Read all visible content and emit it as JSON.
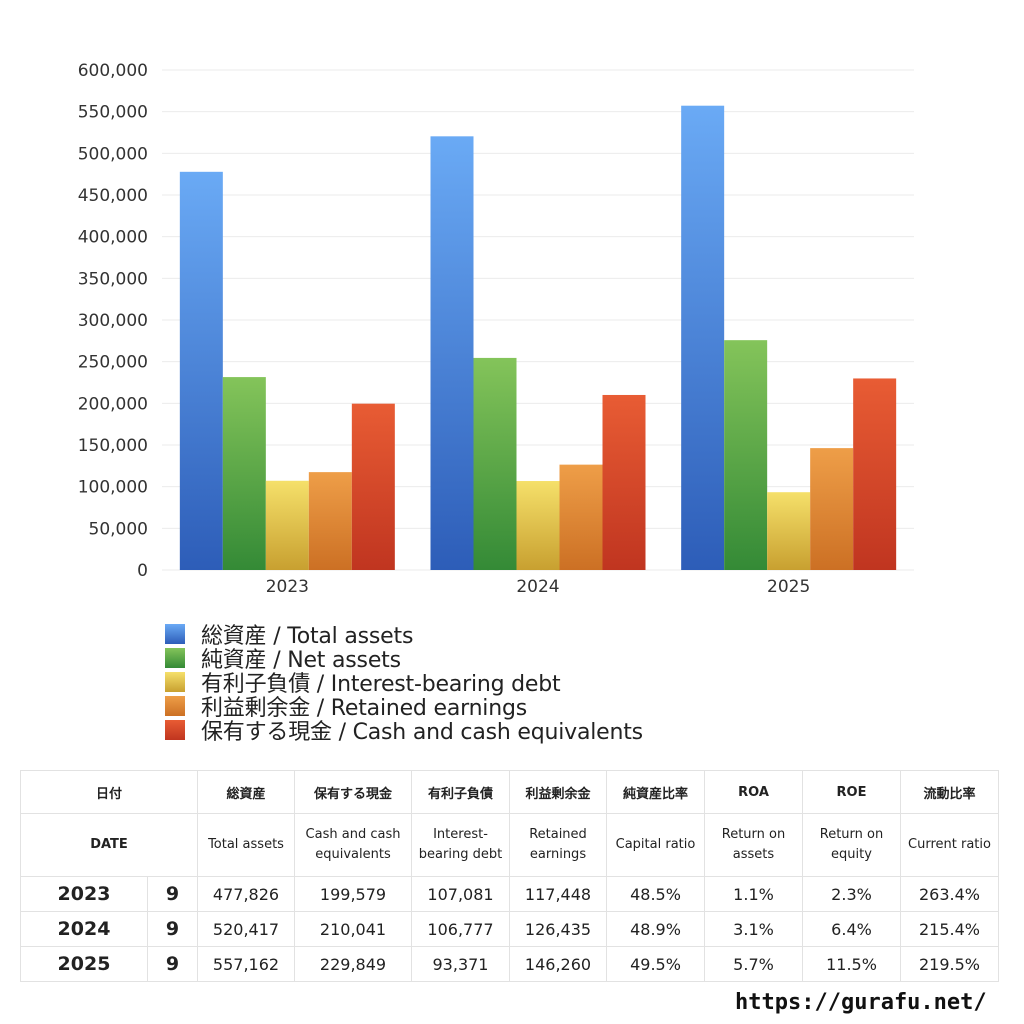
{
  "chart_data": {
    "type": "bar",
    "categories": [
      "2023",
      "2024",
      "2025"
    ],
    "series": [
      {
        "name": "総資産 / Total assets",
        "color": "#4a86e0",
        "color_top": "#6aaaf5",
        "color_bottom": "#2d5db8",
        "values": [
          477826,
          520417,
          557162
        ]
      },
      {
        "name": "純資産 / Net assets",
        "color": "#58a844",
        "color_top": "#84c45a",
        "color_bottom": "#348a36",
        "values": [
          231500,
          254500,
          275800
        ]
      },
      {
        "name": "有利子負債 / Interest-bearing debt",
        "color": "#e8c844",
        "color_top": "#f5e06a",
        "color_bottom": "#c8a030",
        "values": [
          107081,
          106777,
          93371
        ]
      },
      {
        "name": "利益剰余金 / Retained earnings",
        "color": "#e08a38",
        "color_top": "#ee9e48",
        "color_bottom": "#cc7024",
        "values": [
          117448,
          126435,
          146260
        ]
      },
      {
        "name": "保有する現金 /  Cash and cash equivalents",
        "color": "#d84a2a",
        "color_top": "#e85c34",
        "color_bottom": "#c03520",
        "values": [
          199579,
          210041,
          229849
        ]
      }
    ],
    "ylim": [
      0,
      600000
    ],
    "yticks": [
      "0",
      "50,000",
      "100,000",
      "150,000",
      "200,000",
      "250,000",
      "300,000",
      "350,000",
      "400,000",
      "450,000",
      "500,000",
      "550,000",
      "600,000"
    ],
    "grid": true,
    "legend_position": "bottom"
  },
  "table": {
    "headers_jp": [
      "日付",
      "総資産",
      "保有する現金",
      "有利子負債",
      "利益剰余金",
      "純資産比率",
      "ROA",
      "ROE",
      "流動比率"
    ],
    "headers_en": [
      "DATE",
      "Total assets",
      "Cash and cash equivalents",
      "Interest-bearing debt",
      "Retained earnings",
      "Capital ratio",
      "Return on assets",
      "Return on equity",
      "Current ratio"
    ],
    "rows": [
      {
        "year": "2023",
        "month": "9",
        "values": [
          "477,826",
          "199,579",
          "107,081",
          "117,448",
          "48.5%",
          "1.1%",
          "2.3%",
          "263.4%"
        ]
      },
      {
        "year": "2024",
        "month": "9",
        "values": [
          "520,417",
          "210,041",
          "106,777",
          "126,435",
          "48.9%",
          "3.1%",
          "6.4%",
          "215.4%"
        ]
      },
      {
        "year": "2025",
        "month": "9",
        "values": [
          "557,162",
          "229,849",
          "93,371",
          "146,260",
          "49.5%",
          "5.7%",
          "11.5%",
          "219.5%"
        ]
      }
    ]
  },
  "watermark": "https://gurafu.net/"
}
